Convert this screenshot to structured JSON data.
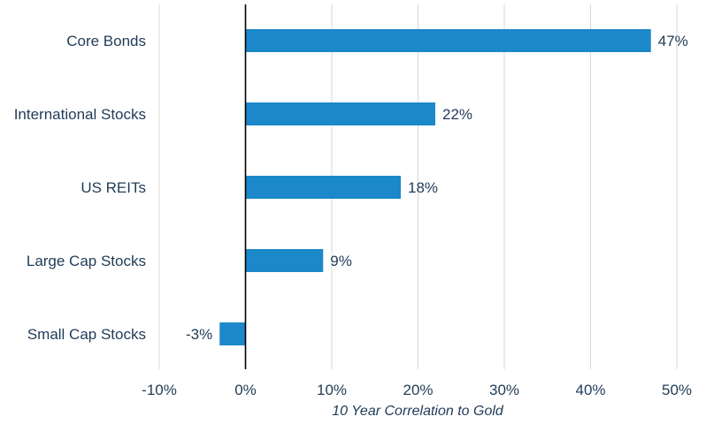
{
  "chart_data": {
    "type": "bar",
    "orientation": "horizontal",
    "categories": [
      "Core Bonds",
      "International Stocks",
      "US REITs",
      "Large Cap Stocks",
      "Small Cap Stocks"
    ],
    "values": [
      47,
      22,
      18,
      9,
      -3
    ],
    "data_labels": [
      "47%",
      "22%",
      "18%",
      "9%",
      "-3%"
    ],
    "xlabel": "10 Year Correlation to Gold",
    "xlim": [
      -10,
      50
    ],
    "x_ticks": [
      -10,
      0,
      10,
      20,
      30,
      40,
      50
    ],
    "x_tick_labels": [
      "-10%",
      "0%",
      "10%",
      "20%",
      "30%",
      "40%",
      "50%"
    ],
    "grid": true,
    "legend": "none",
    "bar_color": "#1b88c9",
    "gridline_color": "#d9d9d9",
    "zero_line_color": "#000000",
    "text_color": "#1f3b57"
  }
}
